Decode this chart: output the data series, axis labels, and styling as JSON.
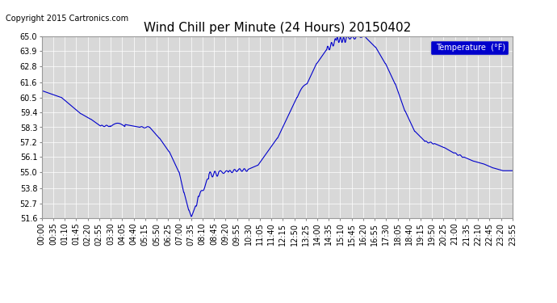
{
  "title": "Wind Chill per Minute (24 Hours) 20150402",
  "copyright_text": "Copyright 2015 Cartronics.com",
  "legend_label": "Temperature  (°F)",
  "line_color": "#0000cc",
  "legend_bg": "#0000cc",
  "legend_text_color": "#ffffff",
  "background_color": "#ffffff",
  "plot_bg_color": "#d8d8d8",
  "grid_color": "#ffffff",
  "ylim": [
    51.6,
    65.0
  ],
  "yticks": [
    51.6,
    52.7,
    53.8,
    55.0,
    56.1,
    57.2,
    58.3,
    59.4,
    60.5,
    61.6,
    62.8,
    63.9,
    65.0
  ],
  "title_fontsize": 11,
  "tick_fontsize": 7,
  "copyright_fontsize": 7,
  "xtick_labels": [
    "00:00",
    "00:35",
    "01:10",
    "01:45",
    "02:20",
    "02:55",
    "03:30",
    "04:05",
    "04:40",
    "05:15",
    "05:50",
    "06:25",
    "07:00",
    "07:35",
    "08:10",
    "08:45",
    "09:20",
    "09:55",
    "10:30",
    "11:05",
    "11:40",
    "12:15",
    "12:50",
    "13:25",
    "14:00",
    "14:35",
    "15:10",
    "15:45",
    "16:20",
    "16:55",
    "17:30",
    "18:05",
    "18:40",
    "19:15",
    "19:50",
    "20:25",
    "21:00",
    "21:35",
    "22:10",
    "22:45",
    "23:20",
    "23:55"
  ]
}
